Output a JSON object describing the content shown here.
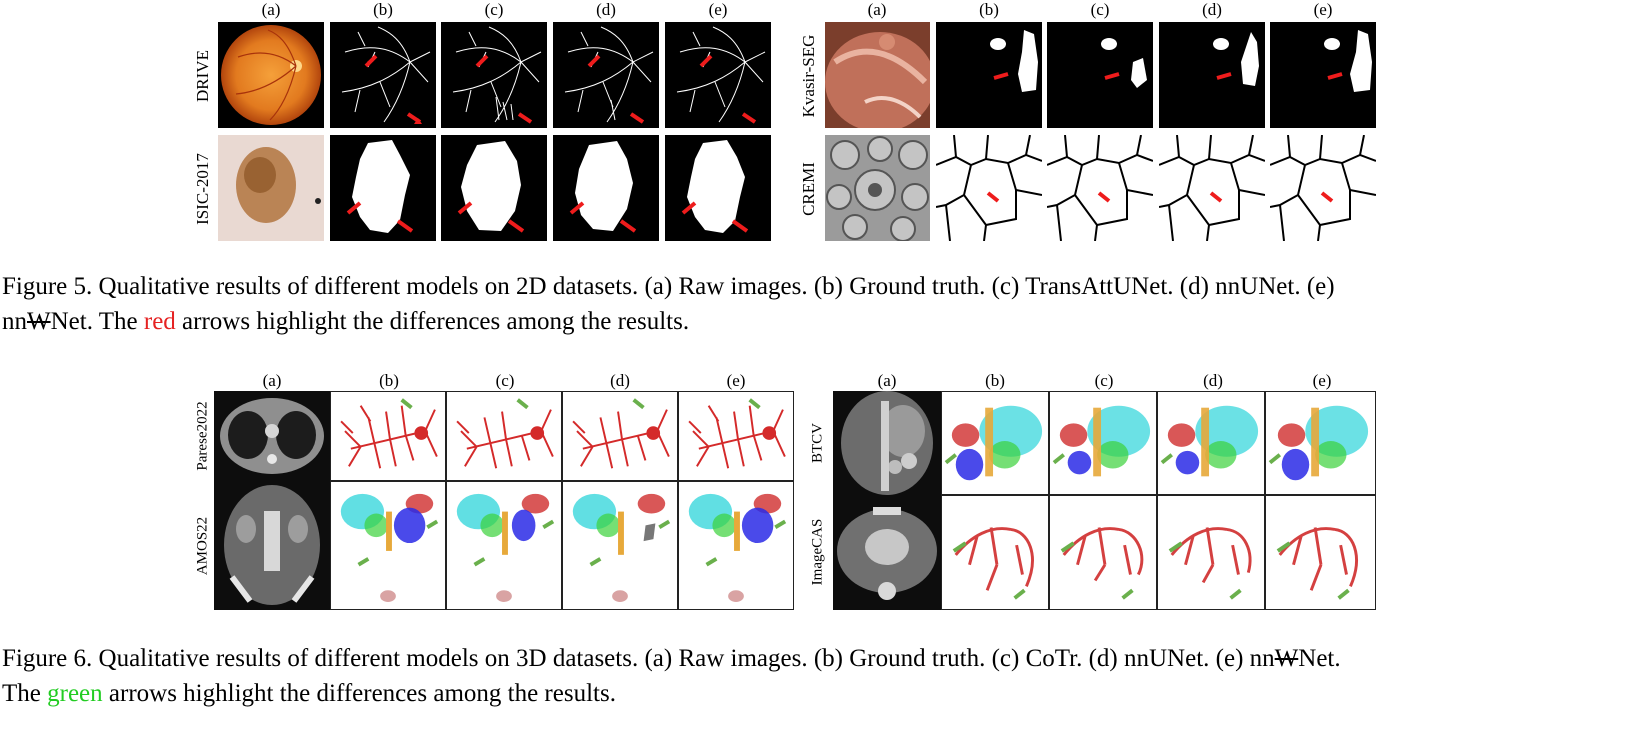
{
  "fig5": {
    "left_panel": {
      "col_headers": [
        "(a)",
        "(b)",
        "(c)",
        "(d)",
        "(e)"
      ],
      "row_labels": [
        "DRIVE",
        "ISIC-2017"
      ]
    },
    "right_panel": {
      "col_headers": [
        "(a)",
        "(b)",
        "(c)",
        "(d)",
        "(e)"
      ],
      "row_labels": [
        "Kvasir-SEG",
        "CREMI"
      ]
    },
    "caption": {
      "line1": "Figure 5.  Qualitative results of different models on 2D datasets.  (a) Raw images.  (b) Ground truth.  (c) TransAttUNet.  (d) nnUNet.  (e)",
      "line2_prefix": "nn",
      "line2_w": "W",
      "line2_mid": "Net. The ",
      "line2_colored": "red",
      "line2_suffix": " arrows highlight the differences among the results."
    },
    "arrow_color": "#ee1c1c"
  },
  "fig6": {
    "left_panel": {
      "col_headers": [
        "(a)",
        "(b)",
        "(c)",
        "(d)",
        "(e)"
      ],
      "row_labels": [
        "Parese2022",
        "AMOS22"
      ]
    },
    "right_panel": {
      "col_headers": [
        "(a)",
        "(b)",
        "(c)",
        "(d)",
        "(e)"
      ],
      "row_labels": [
        "BTCV",
        "ImageCAS"
      ]
    },
    "caption": {
      "line1_prefix": "Figure 6.  Qualitative results of different models on 3D datasets.  (a) Raw images.  (b) Ground truth.  (c) CoTr.  (d) nnUNet.  (e) nn",
      "line1_w": "W",
      "line1_suffix": "Net.",
      "line2_prefix": "The ",
      "line2_colored": "green",
      "line2_suffix": " arrows highlight the differences among the results."
    },
    "arrow_color": "#6ab04c"
  }
}
